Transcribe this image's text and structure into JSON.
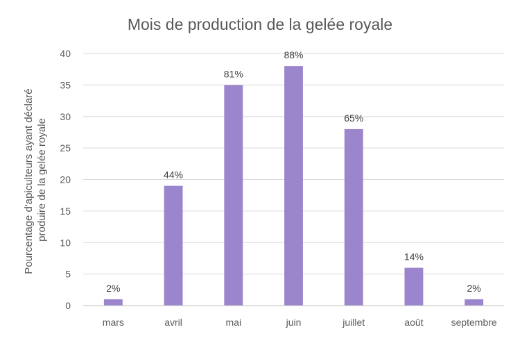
{
  "chart_data": {
    "type": "bar",
    "title": "Mois de production de la gelée royale",
    "ylabel": [
      "Pourcentage d'apiculteurs ayant déclaré",
      "produire de la gelée royale"
    ],
    "xlabel": "",
    "categories": [
      "mars",
      "avril",
      "mai",
      "juin",
      "juillet",
      "août",
      "septembre"
    ],
    "values": [
      1,
      19,
      35,
      38,
      28,
      6,
      1
    ],
    "data_labels": [
      "2%",
      "44%",
      "81%",
      "88%",
      "65%",
      "14%",
      "2%"
    ],
    "ylim": [
      0,
      40
    ],
    "yticks": [
      "0",
      "5",
      "10",
      "15",
      "20",
      "25",
      "30",
      "35",
      "40"
    ],
    "grid": true,
    "bar_color": "#9b85cc"
  }
}
